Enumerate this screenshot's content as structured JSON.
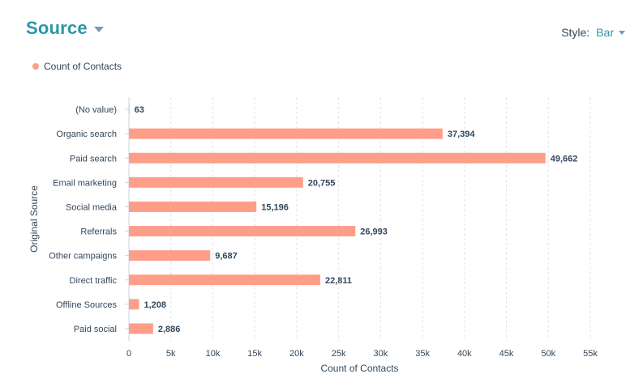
{
  "header": {
    "title": "Source",
    "style_label": "Style:",
    "style_value": "Bar"
  },
  "colors": {
    "accent": "#2d95a8",
    "bar": "#ff9e88",
    "grid": "#dfe3eb"
  },
  "chart_data": {
    "type": "bar",
    "orientation": "horizontal",
    "categories": [
      "(No value)",
      "Organic search",
      "Paid search",
      "Email marketing",
      "Social media",
      "Referrals",
      "Other campaigns",
      "Direct traffic",
      "Offline Sources",
      "Paid social"
    ],
    "values": [
      63,
      37394,
      49662,
      20755,
      15196,
      26993,
      9687,
      22811,
      1208,
      2886
    ],
    "value_labels": [
      "63",
      "37,394",
      "49,662",
      "20,755",
      "15,196",
      "26,993",
      "9,687",
      "22,811",
      "1,208",
      "2,886"
    ],
    "series": [
      {
        "name": "Count of Contacts"
      }
    ],
    "xlabel": "Count of Contacts",
    "ylabel": "Original Source",
    "xlim": [
      0,
      55000
    ],
    "x_ticks": [
      0,
      5000,
      10000,
      15000,
      20000,
      25000,
      30000,
      35000,
      40000,
      45000,
      50000,
      55000
    ],
    "x_tick_labels": [
      "0",
      "5k",
      "10k",
      "15k",
      "20k",
      "25k",
      "30k",
      "35k",
      "40k",
      "45k",
      "50k",
      "55k"
    ],
    "grid": true,
    "legend": "top-left"
  }
}
